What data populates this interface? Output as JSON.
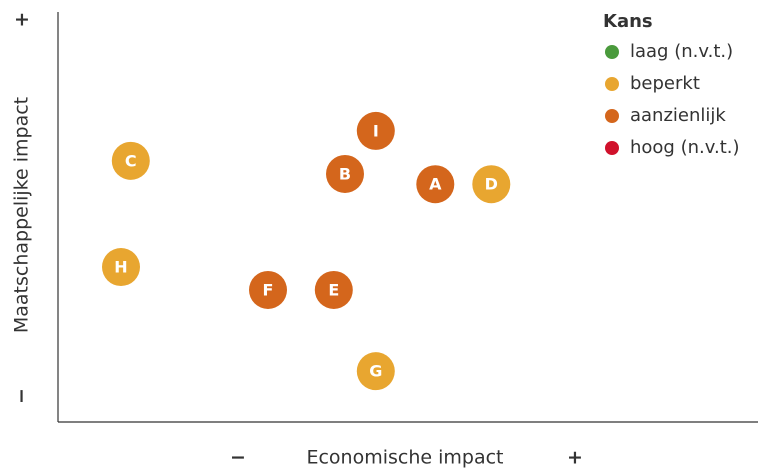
{
  "chart_data": {
    "type": "scatter",
    "x_label": "Economische impact",
    "y_label": "Maatschappelijke impact",
    "x_min_label": "−",
    "x_max_label": "+",
    "y_min_label": "−",
    "y_max_label": "+",
    "legend_title": "Kans",
    "legend_position": "upper right",
    "xlim": [
      0,
      10
    ],
    "ylim": [
      0,
      10
    ],
    "series": [
      {
        "name": "laag (n.v.t.)",
        "color": "#4a9a3c",
        "x": [],
        "y": [],
        "labels": []
      },
      {
        "name": "beperkt",
        "color": "#e8a630",
        "x": [
          1.04,
          0.9,
          6.19,
          4.54
        ],
        "y": [
          6.37,
          3.78,
          5.8,
          1.24
        ],
        "labels": [
          "C",
          "H",
          "D",
          "G"
        ]
      },
      {
        "name": "aanzienlijk",
        "color": "#d4661c",
        "x": [
          3.0,
          3.94,
          4.1,
          4.54,
          5.39
        ],
        "y": [
          3.22,
          3.22,
          6.05,
          7.1,
          5.8
        ],
        "labels": [
          "F",
          "E",
          "B",
          "I",
          "A"
        ]
      },
      {
        "name": "hoog (n.v.t.)",
        "color": "#d0112b",
        "x": [],
        "y": [],
        "labels": []
      }
    ]
  }
}
